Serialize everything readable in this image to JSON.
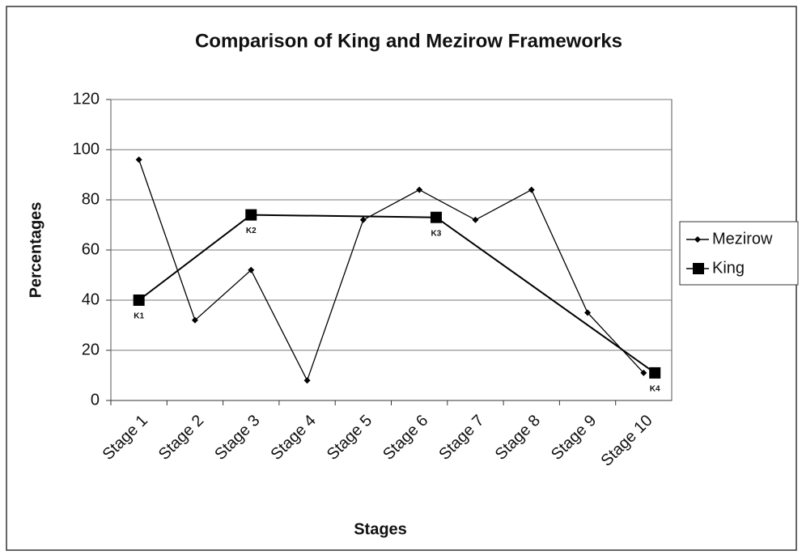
{
  "chart_data": {
    "type": "line",
    "title": "Comparison of King and Mezirow Frameworks",
    "x_label": "Stages",
    "y_label": "Percentages",
    "categories": [
      "Stage 1",
      "Stage 2",
      "Stage 3",
      "Stage 4",
      "Stage 5",
      "Stage 6",
      "Stage 7",
      "Stage 8",
      "Stage 9",
      "Stage 10"
    ],
    "series": [
      {
        "name": "Mezirow",
        "color": "#000000",
        "marker": "diamond",
        "values": [
          96,
          32,
          52,
          8,
          72,
          84,
          72,
          84,
          35,
          11
        ]
      },
      {
        "name": "King",
        "color": "#000000",
        "marker": "square",
        "x": [
          1,
          3,
          6.3,
          10.2
        ],
        "values": [
          40,
          74,
          73,
          11
        ],
        "point_labels": [
          "K1",
          "K2",
          "K3",
          "K4"
        ]
      }
    ],
    "ylim": [
      0,
      120
    ],
    "yticks": [
      0,
      20,
      40,
      60,
      80,
      100,
      120
    ],
    "grid": true,
    "legend": "right"
  }
}
